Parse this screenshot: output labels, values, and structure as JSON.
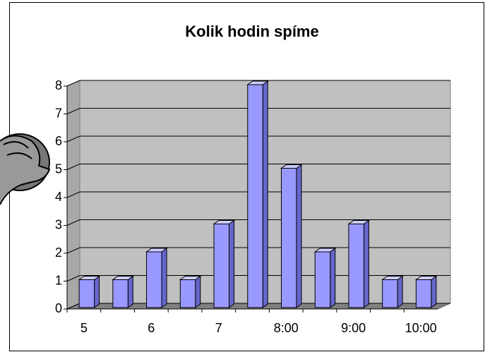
{
  "chart_data": {
    "type": "bar",
    "title": "Kolik hodin spíme",
    "categories": [
      "5",
      null,
      "6",
      null,
      "7",
      null,
      "8:00",
      null,
      "9:00",
      null,
      "10:00"
    ],
    "values": [
      1,
      1,
      2,
      1,
      3,
      8,
      5,
      2,
      3,
      1,
      1
    ],
    "color": "#9999ff",
    "ylim": [
      0,
      8
    ],
    "yticks": [
      0,
      1,
      2,
      3,
      4,
      5,
      6,
      7,
      8
    ],
    "grid": true
  }
}
